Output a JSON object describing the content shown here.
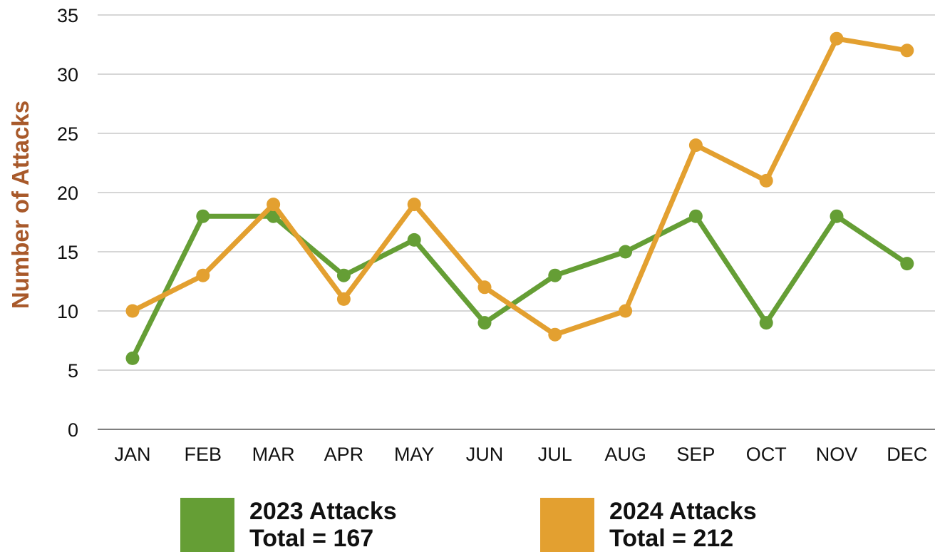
{
  "chart_data": {
    "type": "line",
    "title": "",
    "xlabel": "",
    "ylabel": "Number of Attacks",
    "ylim": [
      0,
      35
    ],
    "yticks": [
      0,
      5,
      10,
      15,
      20,
      25,
      30,
      35
    ],
    "grid": true,
    "legend_position": "bottom",
    "categories": [
      "JAN",
      "FEB",
      "MAR",
      "APR",
      "MAY",
      "JUN",
      "JUL",
      "AUG",
      "SEP",
      "OCT",
      "NOV",
      "DEC"
    ],
    "series": [
      {
        "key": "s2023",
        "values": [
          6,
          18,
          18,
          13,
          16,
          9,
          13,
          15,
          18,
          9,
          18,
          14
        ],
        "color": "#659e35"
      },
      {
        "key": "s2024",
        "values": [
          10,
          13,
          19,
          11,
          19,
          12,
          8,
          10,
          24,
          21,
          33,
          32
        ],
        "color": "#e3a030"
      }
    ]
  },
  "legend": [
    {
      "line1": "2023 Attacks",
      "line2": "Total = 167",
      "color": "#659e35"
    },
    {
      "line1": "2024 Attacks",
      "line2": "Total = 212",
      "color": "#e3a030"
    }
  ],
  "colors": {
    "ylabel": "#a8592a",
    "grid": "#c8c8c8",
    "axis": "#7f7f7f"
  }
}
